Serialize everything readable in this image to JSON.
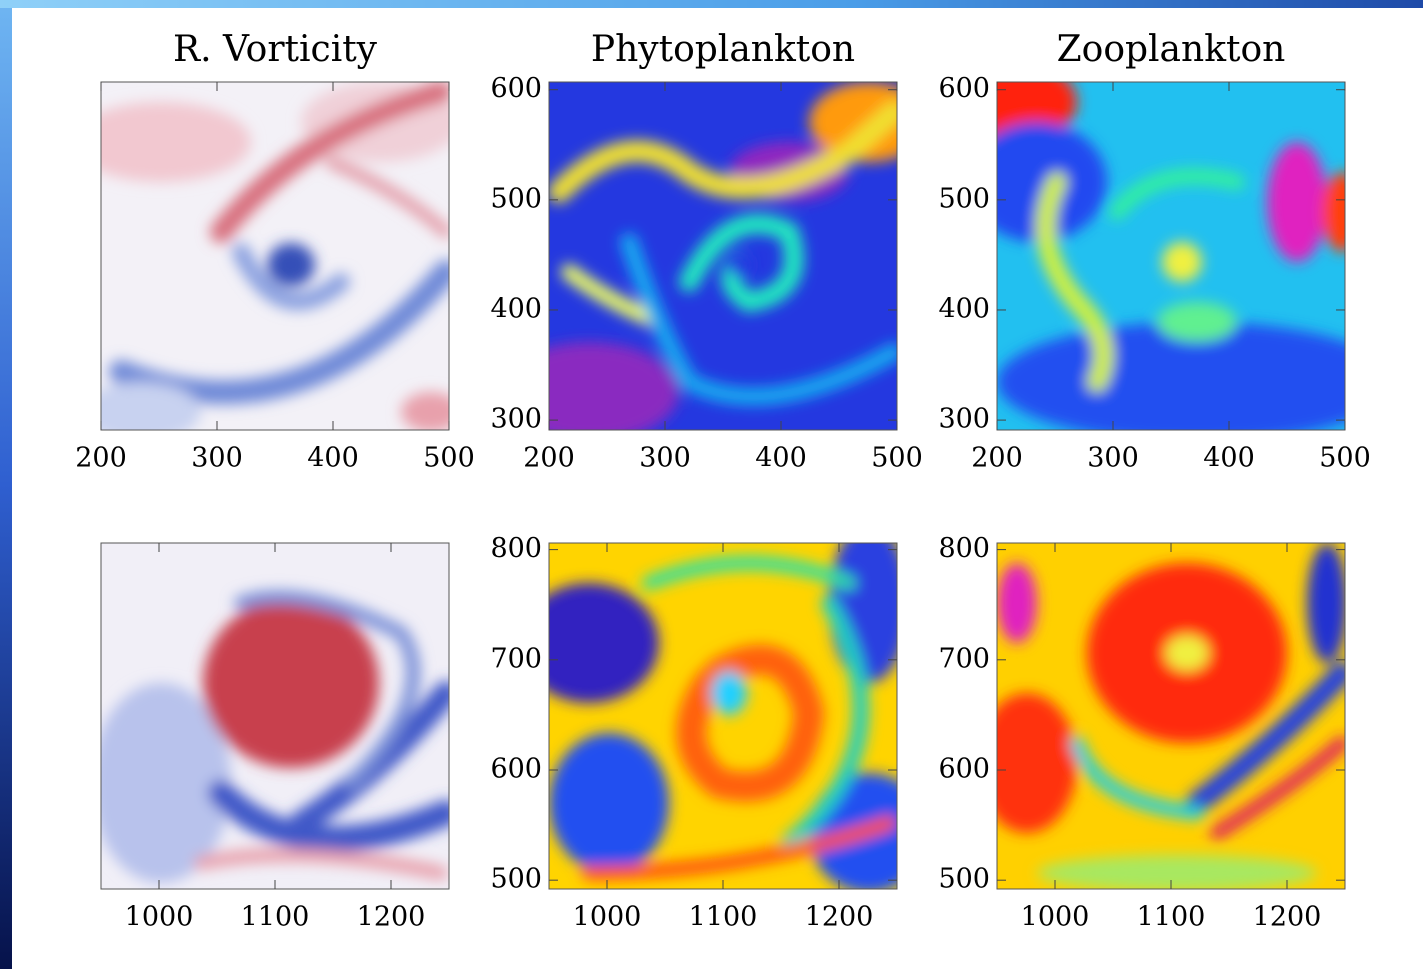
{
  "chart_data": [
    {
      "type": "heatmap",
      "title": "R. Vorticity",
      "xlim": [
        200,
        500
      ],
      "xticks": [
        200,
        300,
        400,
        500
      ]
    },
    {
      "type": "heatmap",
      "title": "Phytoplankton",
      "xlim": [
        200,
        500
      ],
      "xticks": [
        200,
        300,
        400,
        500
      ],
      "ylim": [
        291,
        607
      ],
      "yticks": [
        300,
        400,
        500,
        600
      ]
    },
    {
      "type": "heatmap",
      "title": "Zooplankton",
      "xlim": [
        200,
        500
      ],
      "xticks": [
        200,
        300,
        400,
        500
      ],
      "ylim": [
        291,
        607
      ],
      "yticks": [
        300,
        400,
        500,
        600
      ]
    },
    {
      "type": "heatmap",
      "xlim": [
        950,
        1250
      ],
      "xticks": [
        1000,
        1100,
        1200
      ]
    },
    {
      "type": "heatmap",
      "xlim": [
        950,
        1250
      ],
      "xticks": [
        1000,
        1100,
        1200
      ],
      "ylim": [
        492,
        806
      ],
      "yticks": [
        500,
        600,
        700,
        800
      ]
    },
    {
      "type": "heatmap",
      "xlim": [
        950,
        1250
      ],
      "xticks": [
        1000,
        1100,
        1200
      ],
      "ylim": [
        492,
        806
      ],
      "yticks": [
        500,
        600,
        700,
        800
      ]
    }
  ]
}
